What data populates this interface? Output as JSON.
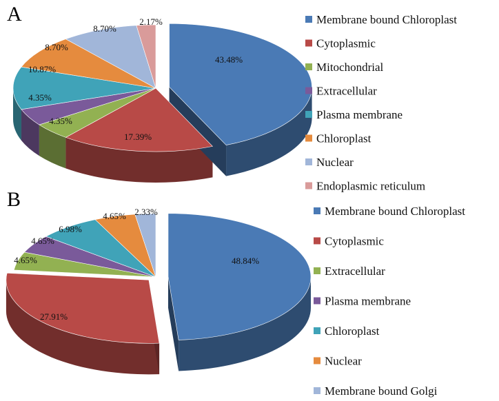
{
  "chart_data": [
    {
      "type": "pie",
      "panel_label": "A",
      "style": "3d-exploded",
      "categories": [
        "Membrane bound Chloroplast",
        "Cytoplasmic",
        "Mitochondrial",
        "Extracellular",
        "Plasma membrane",
        "Chloroplast",
        "Nuclear",
        "Endoplasmic reticulum"
      ],
      "values": [
        43.48,
        17.39,
        4.35,
        4.35,
        10.87,
        8.7,
        8.7,
        2.17
      ],
      "labels": [
        "43.48%",
        "17.39%",
        "4.35%",
        "4.35%",
        "10.87%",
        "8.70%",
        "8.70%",
        "2.17%"
      ],
      "colors": [
        "#4a7ab5",
        "#b84a47",
        "#92b152",
        "#7a5a9a",
        "#40a3b8",
        "#e58b3e",
        "#a1b6d9",
        "#d99b9a"
      ],
      "legend": [
        "Membrane bound Chloroplast",
        "Cytoplasmic",
        "Mitochondrial",
        "Extracellular",
        "Plasma membrane",
        "Chloroplast",
        "Nuclear",
        "Endoplasmic reticulum"
      ],
      "legend_colors": [
        "#4a7ab5",
        "#b84a47",
        "#92b152",
        "#7a5a9a",
        "#40a3b8",
        "#e58b3e",
        "#a1b6d9",
        "#d99b9a"
      ],
      "legend_placement": "right"
    },
    {
      "type": "pie",
      "panel_label": "B",
      "style": "3d-exploded",
      "categories": [
        "Membrane bound Chloroplast",
        "Cytoplasmic",
        "Extracellular",
        "Plasma membrane",
        "Chloroplast",
        "Nuclear",
        "Membrane bound Golgi"
      ],
      "values": [
        48.84,
        27.91,
        4.65,
        4.65,
        6.98,
        4.65,
        2.33
      ],
      "labels": [
        "48.84%",
        "27.91%",
        "4.65%",
        "4.65%",
        "6.98%",
        "4.65%",
        "2.33%"
      ],
      "colors": [
        "#4a7ab5",
        "#b84a47",
        "#92b152",
        "#7a5a9a",
        "#40a3b8",
        "#e58b3e",
        "#a1b6d9"
      ],
      "legend": [
        "Membrane bound Chloroplast",
        "Cytoplasmic",
        "Extracellular",
        "Plasma membrane",
        "Chloroplast",
        "Nuclear",
        "Membrane bound Golgi"
      ],
      "legend_colors": [
        "#4a7ab5",
        "#b84a47",
        "#92b152",
        "#7a5a9a",
        "#40a3b8",
        "#e58b3e",
        "#a1b6d9"
      ],
      "legend_placement": "right"
    }
  ]
}
